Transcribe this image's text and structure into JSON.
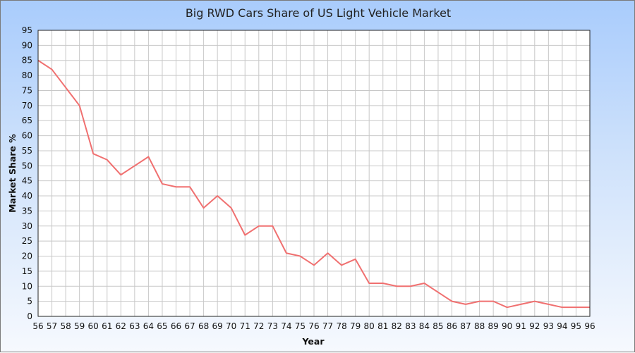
{
  "chart_data": {
    "type": "line",
    "title": "Big RWD Cars Share of US Light Vehicle Market",
    "xlabel": "Year",
    "ylabel": "Market Share %",
    "x": [
      "56",
      "57",
      "58",
      "59",
      "60",
      "61",
      "62",
      "63",
      "64",
      "65",
      "66",
      "67",
      "68",
      "69",
      "70",
      "71",
      "72",
      "73",
      "74",
      "75",
      "76",
      "77",
      "78",
      "79",
      "80",
      "81",
      "82",
      "83",
      "84",
      "85",
      "86",
      "87",
      "88",
      "89",
      "90",
      "91",
      "92",
      "93",
      "94",
      "95",
      "96"
    ],
    "series": [
      {
        "values": [
          85,
          82,
          76,
          70,
          54,
          52,
          47,
          50,
          53,
          44,
          43,
          43,
          36,
          40,
          36,
          27,
          30,
          30,
          21,
          20,
          17,
          21,
          17,
          19,
          11,
          11,
          10,
          10,
          11,
          8,
          5,
          4,
          5,
          5,
          3,
          4,
          5,
          4,
          3,
          3,
          3
        ],
        "color": "#f07070"
      }
    ],
    "ylim": [
      0,
      95
    ],
    "yticks": [
      0,
      5,
      10,
      15,
      20,
      25,
      30,
      35,
      40,
      45,
      50,
      55,
      60,
      65,
      70,
      75,
      80,
      85,
      90,
      95
    ],
    "grid": true,
    "legend": "none"
  }
}
